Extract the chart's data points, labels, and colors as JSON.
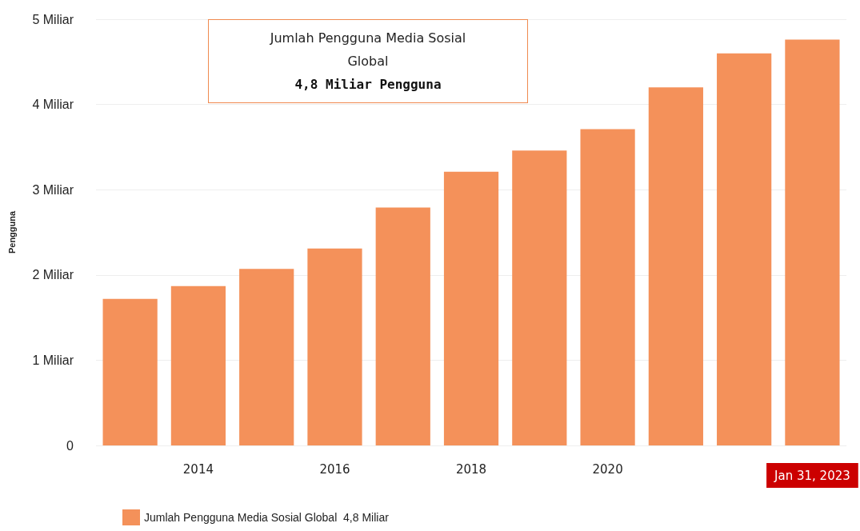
{
  "chart_data": {
    "type": "bar",
    "ylabel": "Pengguna",
    "categories": [
      null,
      "2014",
      null,
      "2016",
      null,
      "2018",
      null,
      "2020",
      null,
      null,
      "Jan 31, 2023"
    ],
    "series": [
      {
        "name": "Jumlah Pengguna Media Sosial Global  4,8 Miliar",
        "color": "#f4915a",
        "values": [
          1.72,
          1.87,
          2.07,
          2.31,
          2.79,
          3.21,
          3.46,
          3.71,
          4.2,
          4.6,
          4.76
        ]
      }
    ],
    "ylim": [
      0,
      5
    ],
    "yticks": [
      0,
      {
        "value": 1,
        "label": "1 Miliar"
      },
      {
        "value": 2,
        "label": "2 Miliar"
      },
      {
        "value": 3,
        "label": "3 Miliar"
      },
      {
        "value": 4,
        "label": "4 Miliar"
      },
      {
        "value": 5,
        "label": "5 Miliar"
      }
    ],
    "grid": "y",
    "legend": "bottom left",
    "annotations": [
      "Jumlah Pengguna Media Sosial Global",
      "4,8 Miliar Pengguna"
    ]
  }
}
